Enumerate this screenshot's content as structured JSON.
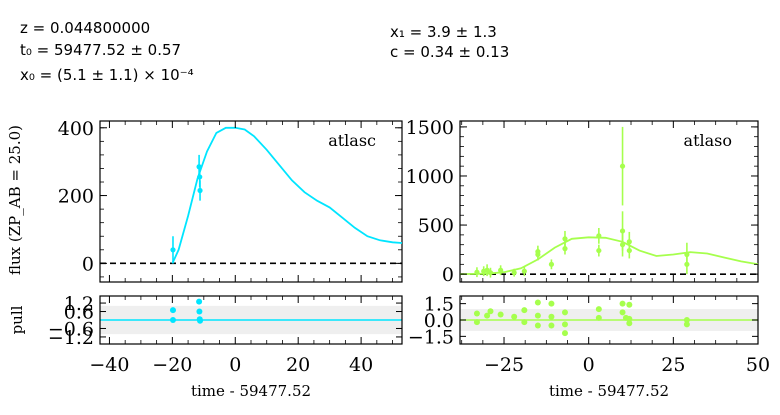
{
  "header": {
    "z": "z = 0.044800000",
    "t0": "t₀ = 59477.52 ± 0.57",
    "x0": "x₀ = (5.1 ± 1.1) × 10⁻⁴",
    "x1": "x₁ = 3.9 ± 1.3",
    "c": "c = 0.34 ± 0.13"
  },
  "labels": {
    "ylabel": "flux (ZP_AB = 25.0)",
    "pull_label": "pull",
    "xlabel_left": "time - 59477.52",
    "xlabel_right": "time - 59477.52"
  },
  "chart_data": [
    {
      "type": "line",
      "band": "atlasc",
      "color": "#00e5ff",
      "xlim": [
        -43,
        53
      ],
      "ylim": [
        -55,
        420
      ],
      "xticks": [
        "−40",
        "−20",
        "0",
        "20",
        "40"
      ],
      "yticks": [
        "0",
        "200",
        "400"
      ],
      "model": {
        "x": [
          -20,
          -18,
          -15,
          -12,
          -9,
          -6,
          -3,
          0,
          3,
          6,
          10,
          14,
          18,
          22,
          26,
          30,
          34,
          38,
          42,
          46,
          50,
          53
        ],
        "y": [
          0,
          40,
          140,
          250,
          330,
          385,
          400,
          400,
          395,
          375,
          335,
          290,
          245,
          210,
          185,
          165,
          135,
          105,
          80,
          68,
          62,
          60
        ]
      },
      "points": [
        {
          "x": -19.8,
          "y": 40,
          "err": 40
        },
        {
          "x": -11.5,
          "y": 285,
          "err": 35
        },
        {
          "x": -11.3,
          "y": 255,
          "err": 30
        },
        {
          "x": -11.2,
          "y": 215,
          "err": 30
        }
      ],
      "pull": {
        "ylim": [
          -1.7,
          1.7
        ],
        "yticks": [
          "−1.2",
          "−0.6",
          "0.6",
          "1.2"
        ],
        "points": [
          {
            "x": -19.8,
            "y": 0.7
          },
          {
            "x": -19.8,
            "y": 0.0
          },
          {
            "x": -11.5,
            "y": 1.3
          },
          {
            "x": -11.4,
            "y": 0.6
          },
          {
            "x": -11.3,
            "y": 0.05
          },
          {
            "x": -11.2,
            "y": -0.05
          }
        ]
      }
    },
    {
      "type": "line",
      "band": "atlaso",
      "color": "#a6ff4d",
      "xlim": [
        -38,
        50
      ],
      "ylim": [
        -80,
        1560
      ],
      "xticks": [
        "−25",
        "0",
        "25",
        "50"
      ],
      "yticks": [
        "0",
        "500",
        "1000",
        "1500"
      ],
      "model": {
        "x": [
          -38,
          -30,
          -25,
          -20,
          -15,
          -10,
          -5,
          0,
          5,
          10,
          15,
          20,
          25,
          30,
          35,
          40,
          45,
          50
        ],
        "y": [
          0,
          5,
          20,
          60,
          150,
          270,
          360,
          375,
          370,
          330,
          240,
          185,
          200,
          225,
          210,
          170,
          130,
          100
        ]
      },
      "points": [
        {
          "x": -33,
          "y": 20,
          "err": 50
        },
        {
          "x": -31,
          "y": 30,
          "err": 50
        },
        {
          "x": -30,
          "y": 40,
          "err": 60
        },
        {
          "x": -29,
          "y": 15,
          "err": 50
        },
        {
          "x": -26,
          "y": 40,
          "err": 50
        },
        {
          "x": -22,
          "y": 15,
          "err": 40
        },
        {
          "x": -19,
          "y": 30,
          "err": 50
        },
        {
          "x": -15,
          "y": 230,
          "err": 60
        },
        {
          "x": -15,
          "y": 200,
          "err": 60
        },
        {
          "x": -11,
          "y": 100,
          "err": 50
        },
        {
          "x": -7,
          "y": 360,
          "err": 80
        },
        {
          "x": -7,
          "y": 260,
          "err": 60
        },
        {
          "x": 3,
          "y": 390,
          "err": 80
        },
        {
          "x": 3,
          "y": 240,
          "err": 60
        },
        {
          "x": 10,
          "y": 1100,
          "err": 400
        },
        {
          "x": 10,
          "y": 440,
          "err": 200
        },
        {
          "x": 10,
          "y": 300,
          "err": 120
        },
        {
          "x": 12,
          "y": 330,
          "err": 100
        },
        {
          "x": 12,
          "y": 240,
          "err": 80
        },
        {
          "x": 29,
          "y": 200,
          "err": 120
        },
        {
          "x": 29,
          "y": 100,
          "err": 100
        }
      ],
      "pull": {
        "ylim": [
          -2.2,
          2.2
        ],
        "yticks": [
          "−1.5",
          "0.0",
          "1.5"
        ],
        "points": [
          {
            "x": -33,
            "y": 0.6
          },
          {
            "x": -33,
            "y": -0.2
          },
          {
            "x": -30,
            "y": 0.4
          },
          {
            "x": -29,
            "y": 0.8
          },
          {
            "x": -26,
            "y": 0.5
          },
          {
            "x": -22,
            "y": 0.3
          },
          {
            "x": -19,
            "y": 0.9
          },
          {
            "x": -19,
            "y": -0.2
          },
          {
            "x": -15,
            "y": 1.6
          },
          {
            "x": -15,
            "y": 0.4
          },
          {
            "x": -15,
            "y": -0.5
          },
          {
            "x": -11,
            "y": 1.5
          },
          {
            "x": -11,
            "y": 0.3
          },
          {
            "x": -11,
            "y": -0.5
          },
          {
            "x": -7,
            "y": 0.7
          },
          {
            "x": -7,
            "y": -0.4
          },
          {
            "x": -7,
            "y": -1.2
          },
          {
            "x": 3,
            "y": 1.0
          },
          {
            "x": 3,
            "y": 0.2
          },
          {
            "x": 10,
            "y": 1.5
          },
          {
            "x": 10,
            "y": 0.7
          },
          {
            "x": 11,
            "y": 0.2
          },
          {
            "x": 12,
            "y": 1.4
          },
          {
            "x": 12,
            "y": 0.1
          },
          {
            "x": 12,
            "y": -0.3
          },
          {
            "x": 29,
            "y": 0.0
          },
          {
            "x": 29,
            "y": -0.4
          }
        ]
      }
    }
  ]
}
